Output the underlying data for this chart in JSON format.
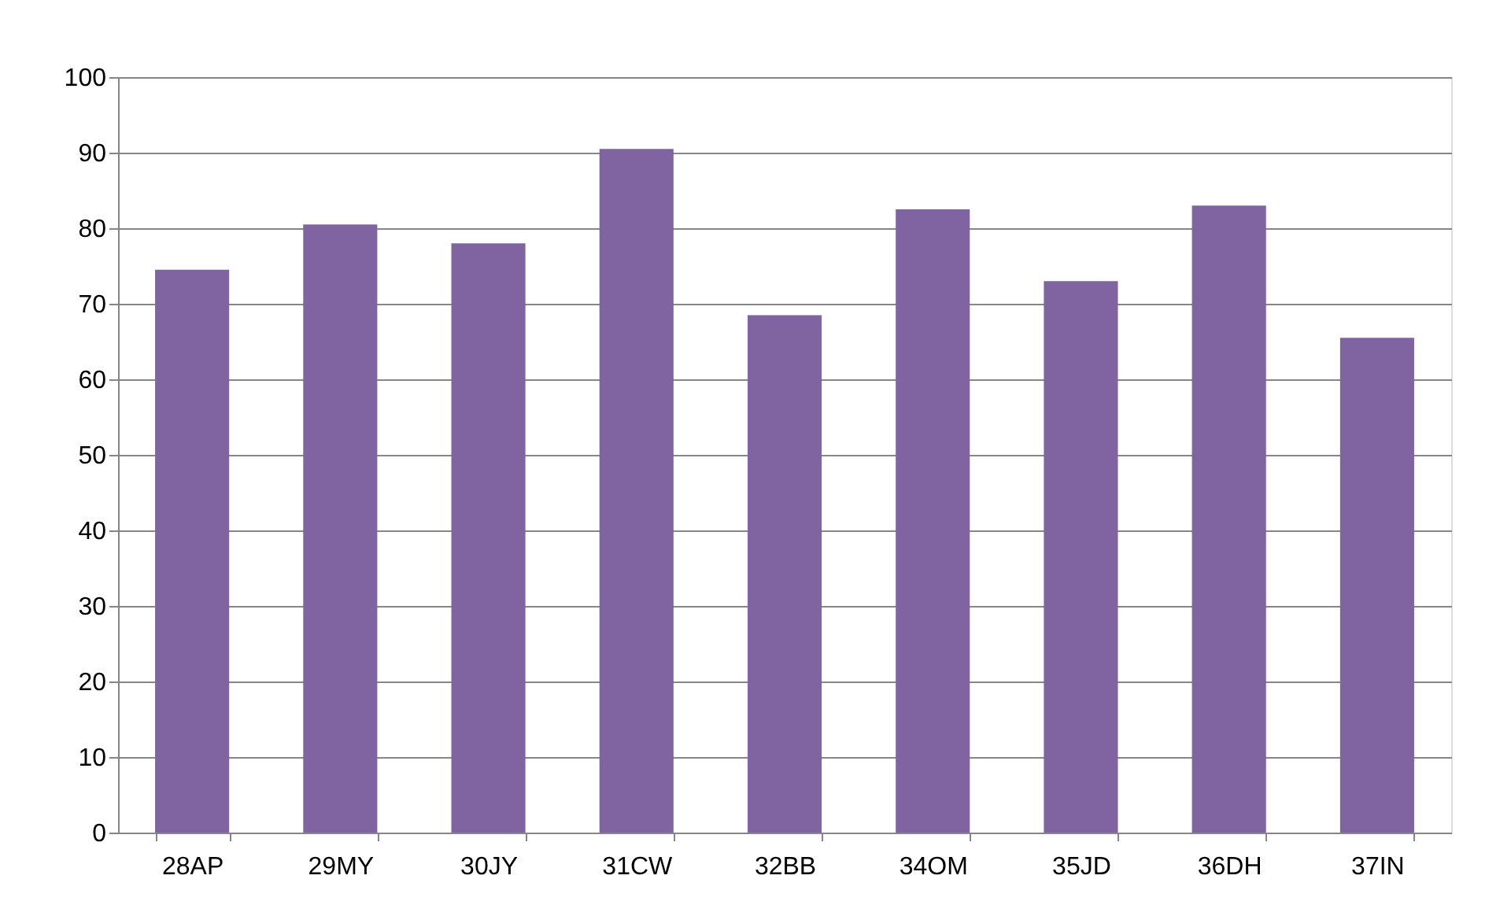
{
  "chart_data": {
    "type": "bar",
    "categories": [
      "28AP",
      "29MY",
      "30JY",
      "31CW",
      "32BB",
      "34OM",
      "35JD",
      "36DH",
      "37IN"
    ],
    "values": [
      74.5,
      80.5,
      78,
      90.5,
      68.5,
      82.5,
      73,
      83,
      65.5
    ],
    "color": "#8064a2",
    "ylim": [
      0,
      100
    ],
    "yticks": [
      0,
      10,
      20,
      30,
      40,
      50,
      60,
      70,
      80,
      90,
      100
    ],
    "grid": "y"
  }
}
